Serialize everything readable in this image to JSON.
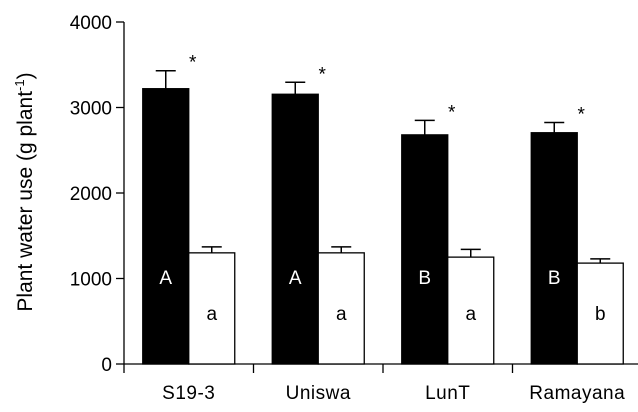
{
  "chart_data": {
    "type": "bar",
    "ylabel_main": "Plant water use (g plant",
    "ylabel_sup": "-1",
    "ylabel_close": ")",
    "ylim": [
      0,
      4000
    ],
    "yticks": [
      0,
      1000,
      2000,
      3000,
      4000
    ],
    "categories": [
      "S19-3",
      "Uniswa",
      "LunT",
      "Ramayana"
    ],
    "series": [
      {
        "color": "#000000",
        "values": [
          3220,
          3155,
          2680,
          2705
        ],
        "errors": [
          210,
          140,
          170,
          120
        ],
        "letters": [
          "A",
          "A",
          "B",
          "B"
        ]
      },
      {
        "color": "#ffffff",
        "values": [
          1300,
          1300,
          1250,
          1180
        ],
        "errors": [
          70,
          70,
          90,
          50
        ],
        "letters": [
          "a",
          "a",
          "a",
          "b"
        ]
      }
    ],
    "significance": [
      "*",
      "*",
      "*",
      "*"
    ],
    "grid": false
  }
}
